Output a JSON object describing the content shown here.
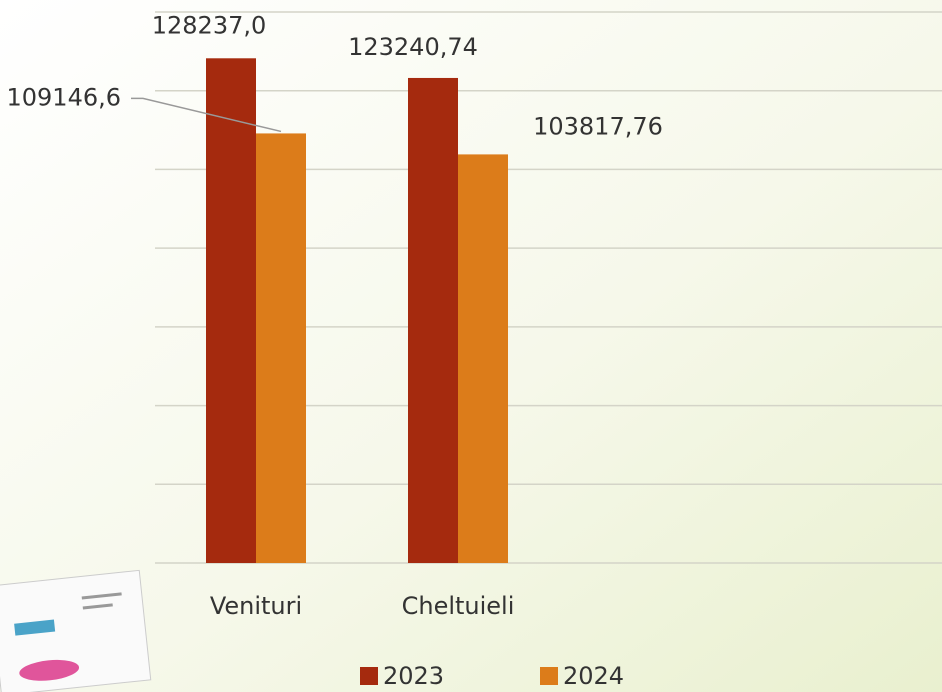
{
  "chart_data": {
    "type": "bar",
    "categories": [
      "Venituri",
      "Cheltuieli"
    ],
    "series": [
      {
        "name": "2023",
        "color": "#a52a0e",
        "values": [
          128237.0,
          123240.74
        ],
        "value_labels": [
          "128237,0",
          "123240,74"
        ]
      },
      {
        "name": "2024",
        "color": "#dc7c1a",
        "values": [
          109146.6,
          103817.76
        ],
        "value_labels": [
          "109146,6",
          "103817,76"
        ]
      }
    ],
    "ylim": [
      0,
      140000
    ],
    "yticks": [
      0,
      20000,
      40000,
      60000,
      80000,
      100000,
      120000,
      140000
    ],
    "grid": true,
    "legend": "bottom"
  }
}
